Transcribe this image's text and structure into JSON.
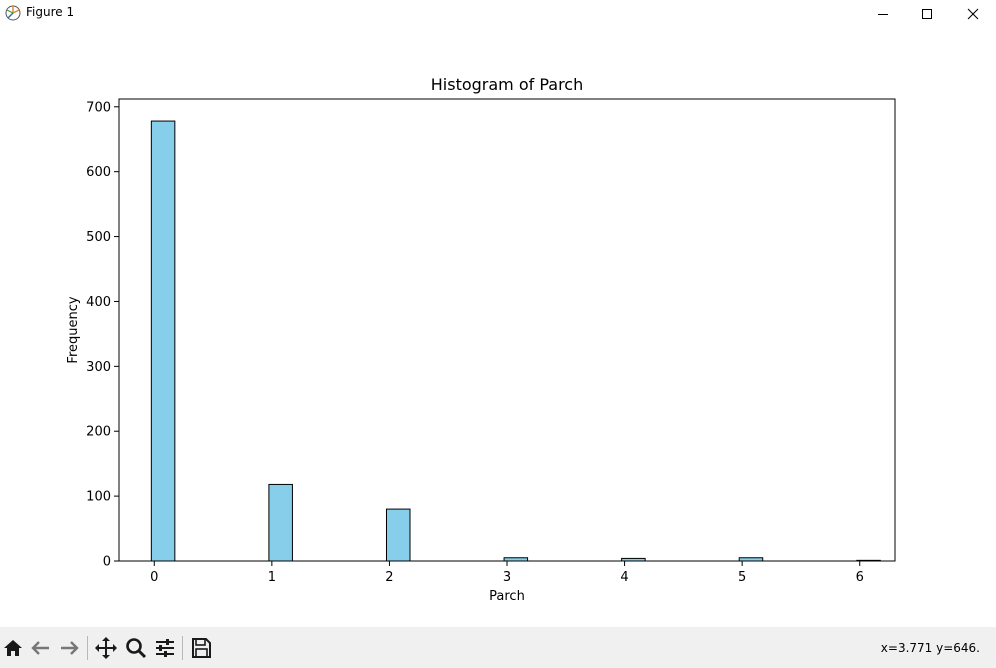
{
  "window": {
    "title": "Figure 1",
    "icons": {
      "app": "matplotlib-figure-icon",
      "minimize": "minimize-icon",
      "maximize": "maximize-icon",
      "close": "close-icon"
    }
  },
  "toolbar": {
    "tools": [
      {
        "name": "home-button",
        "icon": "home-icon"
      },
      {
        "name": "back-button",
        "icon": "back-arrow-icon"
      },
      {
        "name": "forward-button",
        "icon": "forward-arrow-icon"
      },
      {
        "name": "pan-button",
        "icon": "move-icon"
      },
      {
        "name": "zoom-button",
        "icon": "zoom-icon"
      },
      {
        "name": "configure-subplots-button",
        "icon": "sliders-icon"
      },
      {
        "name": "save-button",
        "icon": "save-icon"
      }
    ],
    "coordinates": "x=3.771 y=646."
  },
  "chart_data": {
    "type": "bar",
    "title": "Histogram of Parch",
    "xlabel": "Parch",
    "ylabel": "Frequency",
    "xlim": [
      -0.3,
      6.3
    ],
    "ylim": [
      0,
      712
    ],
    "xticks": [
      0,
      1,
      2,
      3,
      4,
      5,
      6
    ],
    "yticks": [
      0,
      100,
      200,
      300,
      400,
      500,
      600,
      700
    ],
    "bin_width": 0.2,
    "bins": [
      {
        "x": 0,
        "value": 678
      },
      {
        "x": 1,
        "value": 118
      },
      {
        "x": 2,
        "value": 80
      },
      {
        "x": 3,
        "value": 5
      },
      {
        "x": 4,
        "value": 4
      },
      {
        "x": 5,
        "value": 5
      },
      {
        "x": 6,
        "value": 1
      }
    ],
    "bar_color": "#87ceeb",
    "edge_color": "#000000",
    "grid": false
  }
}
